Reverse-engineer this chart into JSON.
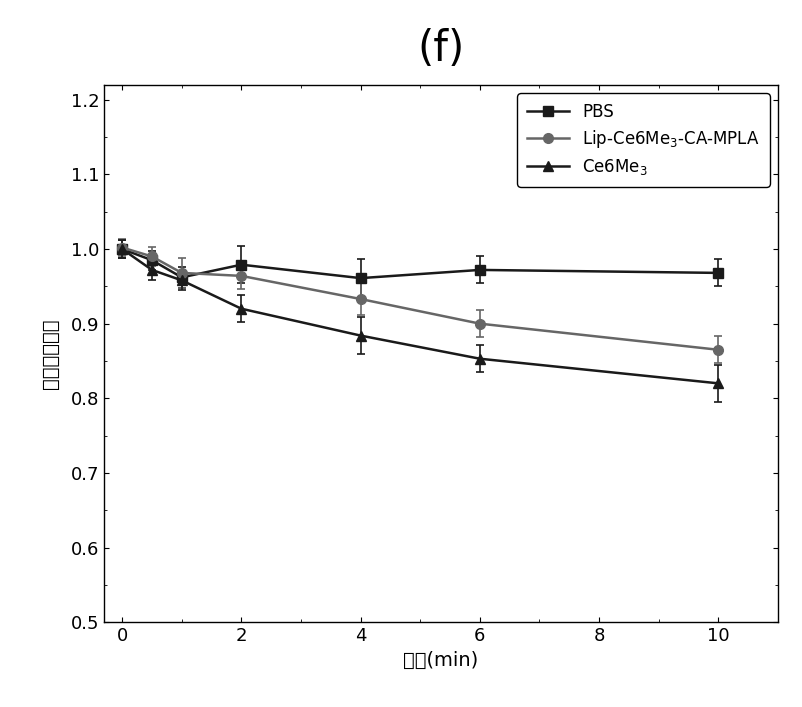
{
  "title": "(f)",
  "xlabel_cn": "时间",
  "xlabel_en": "(min)",
  "ylabel": "相对荧光强度",
  "xlim": [
    -0.3,
    11
  ],
  "ylim": [
    0.5,
    1.22
  ],
  "xticks": [
    0,
    2,
    4,
    6,
    8,
    10
  ],
  "yticks": [
    0.5,
    0.6,
    0.7,
    0.8,
    0.9,
    1.0,
    1.1,
    1.2
  ],
  "series": [
    {
      "label": "PBS",
      "x": [
        0,
        0.5,
        1,
        2,
        4,
        6,
        10
      ],
      "y": [
        1.0,
        0.985,
        0.962,
        0.979,
        0.961,
        0.972,
        0.968
      ],
      "yerr": [
        0.012,
        0.013,
        0.014,
        0.025,
        0.025,
        0.018,
        0.018
      ],
      "color": "#1a1a1a",
      "marker": "s",
      "markersize": 7,
      "linewidth": 1.8
    },
    {
      "label": "Lip-Ce6Me3-CA-MPLA",
      "x": [
        0,
        0.5,
        1,
        2,
        4,
        6,
        10
      ],
      "y": [
        1.002,
        0.99,
        0.968,
        0.964,
        0.933,
        0.9,
        0.865
      ],
      "yerr": [
        0.012,
        0.013,
        0.02,
        0.018,
        0.022,
        0.018,
        0.018
      ],
      "color": "#666666",
      "marker": "o",
      "markersize": 7,
      "linewidth": 1.8
    },
    {
      "label": "Ce6Me3",
      "x": [
        0,
        0.5,
        1,
        2,
        4,
        6,
        10
      ],
      "y": [
        1.0,
        0.972,
        0.958,
        0.92,
        0.884,
        0.853,
        0.82
      ],
      "yerr": [
        0.012,
        0.013,
        0.013,
        0.018,
        0.025,
        0.018,
        0.025
      ],
      "color": "#1a1a1a",
      "marker": "^",
      "markersize": 7,
      "linewidth": 1.8
    }
  ],
  "legend_loc": "upper right",
  "legend_fontsize": 12,
  "axis_fontsize": 14,
  "title_fontsize": 30,
  "tick_fontsize": 13,
  "background_color": "#ffffff"
}
